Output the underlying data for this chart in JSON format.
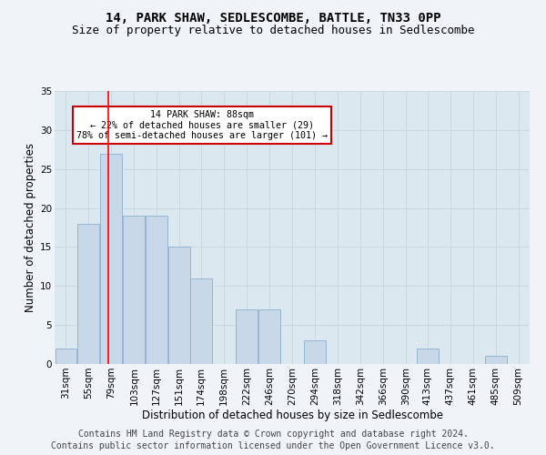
{
  "title1": "14, PARK SHAW, SEDLESCOMBE, BATTLE, TN33 0PP",
  "title2": "Size of property relative to detached houses in Sedlescombe",
  "xlabel": "Distribution of detached houses by size in Sedlescombe",
  "ylabel": "Number of detached properties",
  "footer1": "Contains HM Land Registry data © Crown copyright and database right 2024.",
  "footer2": "Contains public sector information licensed under the Open Government Licence v3.0.",
  "annotation_title": "14 PARK SHAW: 88sqm",
  "annotation_line1": "← 22% of detached houses are smaller (29)",
  "annotation_line2": "78% of semi-detached houses are larger (101) →",
  "bar_edges": [
    31,
    55,
    79,
    103,
    127,
    151,
    174,
    198,
    222,
    246,
    270,
    294,
    318,
    342,
    366,
    390,
    413,
    437,
    461,
    485,
    509
  ],
  "bar_heights": [
    2,
    18,
    27,
    19,
    19,
    15,
    11,
    0,
    7,
    7,
    0,
    3,
    0,
    0,
    0,
    0,
    2,
    0,
    0,
    1,
    0
  ],
  "bar_color": "#c8d8e8",
  "bar_edge_color": "#8ab0cc",
  "red_line_x": 88,
  "ylim": [
    0,
    35
  ],
  "yticks": [
    0,
    5,
    10,
    15,
    20,
    25,
    30,
    35
  ],
  "grid_color": "#c8d8e0",
  "bg_color": "#dce8f0",
  "fig_color": "#f0f4f8",
  "annotation_box_color": "#ffffff",
  "annotation_box_edge": "#cc0000",
  "title_fontsize": 10,
  "subtitle_fontsize": 9,
  "axis_label_fontsize": 8.5,
  "tick_fontsize": 7.5,
  "footer_fontsize": 7
}
